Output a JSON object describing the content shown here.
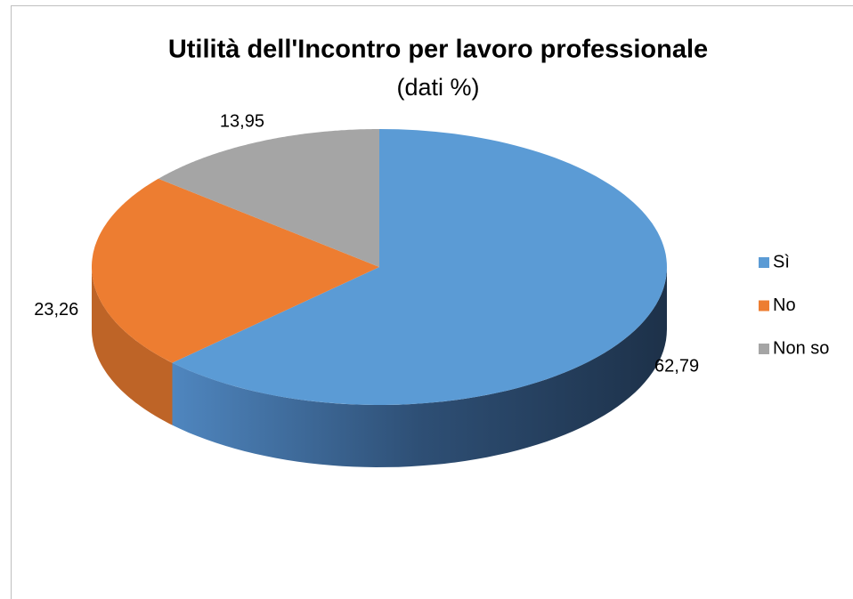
{
  "chart_data": {
    "type": "pie3d",
    "title": "Utilità dell'Incontro per lavoro professionale",
    "subtitle": "(dati %)",
    "series": [
      {
        "name": "Sì",
        "color": "#5b9bd5"
      },
      {
        "name": "No",
        "color": "#ed7d31"
      },
      {
        "name": "Non so",
        "color": "#a5a5a5"
      }
    ],
    "values": [
      62.79,
      23.26,
      13.95
    ],
    "value_labels": [
      "62,79",
      "23,26",
      "13,95"
    ],
    "legend": "right"
  }
}
